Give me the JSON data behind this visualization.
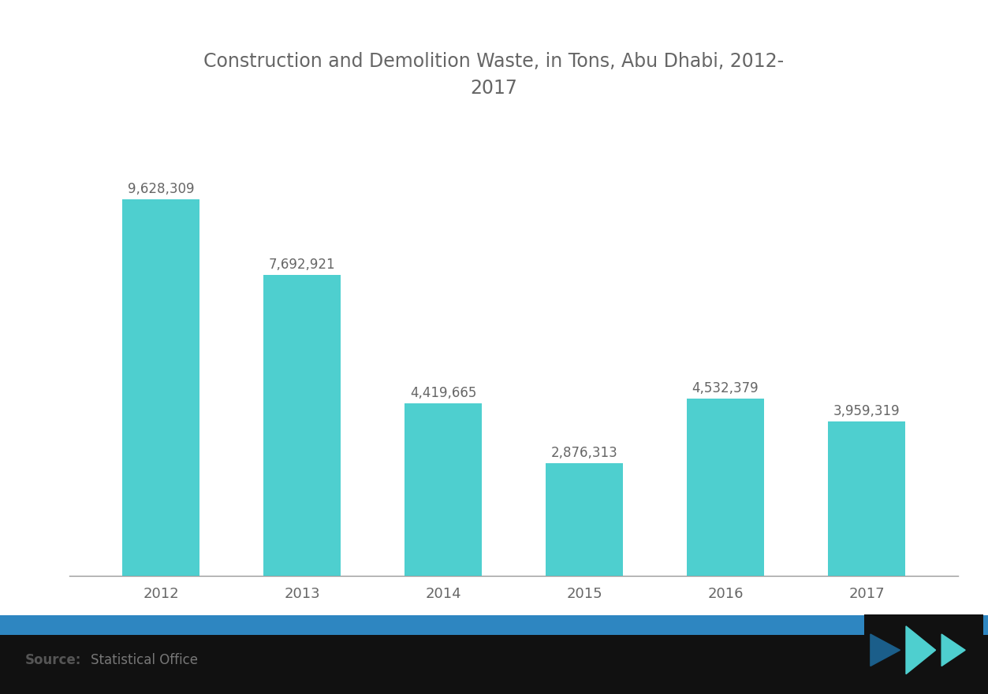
{
  "title": "Construction and Demolition Waste, in Tons, Abu Dhabi, 2012-\n2017",
  "categories": [
    "2012",
    "2013",
    "2014",
    "2015",
    "2016",
    "2017"
  ],
  "values": [
    9628309,
    7692921,
    4419665,
    2876313,
    4532379,
    3959319
  ],
  "bar_color": "#4ECFCF",
  "background_color": "#ffffff",
  "plot_bg_color": "#ffffff",
  "title_color": "#666666",
  "label_color": "#666666",
  "tick_color": "#666666",
  "axis_line_color": "#999999",
  "footer_blue_color": "#2E86C1",
  "footer_black_color": "#111111",
  "source_bold_color": "#555555",
  "source_regular_color": "#777777",
  "ylim": [
    0,
    11000000
  ],
  "title_fontsize": 17,
  "label_fontsize": 12,
  "tick_fontsize": 13,
  "bar_width": 0.55
}
